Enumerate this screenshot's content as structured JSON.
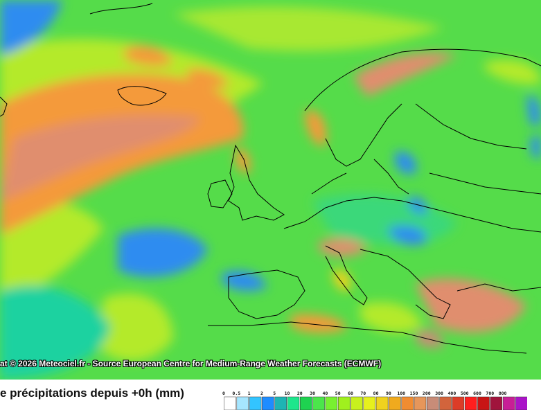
{
  "credit": "at © 2026 Meteociel.fr - Source European Centre for Medium-Range Weather Forecasts (ECMWF)",
  "title": "e précipitations depuis +0h (mm)",
  "legend": {
    "ticks": [
      "0",
      "0.5",
      "1",
      "2",
      "5",
      "10",
      "20",
      "30",
      "40",
      "50",
      "60",
      "70",
      "80",
      "90",
      "100",
      "150",
      "200",
      "300",
      "400",
      "500",
      "600",
      "700",
      "800"
    ],
    "colors": [
      "#ffffff",
      "#a6e6ff",
      "#33c4ff",
      "#1e8cff",
      "#1eb4b4",
      "#1ee68c",
      "#1ed250",
      "#4be64b",
      "#78f030",
      "#a0f01e",
      "#c8f01e",
      "#e6f01e",
      "#f0d21e",
      "#f0aa1e",
      "#f08c32",
      "#e6965a",
      "#c88c78",
      "#d2643c",
      "#dc3c28",
      "#ff1e1e",
      "#c81414",
      "#a0143c",
      "#c81e96",
      "#aa14c8"
    ]
  },
  "map_colors": {
    "sea_green": "#4fe048",
    "yellow_green": "#b4ea2a",
    "orange": "#f49a3a",
    "salmon": "#e08e6e",
    "blue": "#2e8cf0",
    "teal": "#1ed2a0",
    "border": "#000000"
  }
}
